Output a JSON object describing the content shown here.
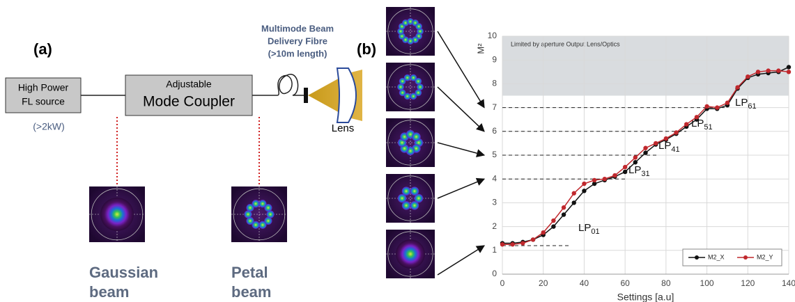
{
  "diagram": {
    "panel_a": "(a)",
    "panel_b": "(b)",
    "source": [
      "High Power",
      "FL source"
    ],
    "source_power": "(>2kW)",
    "coupler": [
      "Adjustable",
      "Mode Coupler"
    ],
    "fibre": [
      "Multimode Beam",
      "Delivery Fibre",
      "(>10m length)"
    ],
    "lens": "Lens",
    "gaussian": [
      "Gaussian",
      "beam"
    ],
    "petal": [
      "Petal",
      "beam"
    ]
  },
  "chart_data": {
    "type": "line",
    "x_label": "Settings [a.u]",
    "y_label": "M²",
    "xlim": [
      0,
      140
    ],
    "xticks": [
      0,
      20,
      40,
      60,
      80,
      100,
      120,
      140
    ],
    "ylim": [
      0,
      10
    ],
    "yticks": [
      0,
      1,
      2,
      3,
      4,
      5,
      6,
      7,
      8,
      9,
      10
    ],
    "grid": true,
    "legend": "bottom-right",
    "shaded_region": {
      "label": "Limited by aperture Output Lens/Optics",
      "y": [
        7.5,
        10
      ],
      "color": "#d9dcdf"
    },
    "annotations": [
      {
        "text": "LP",
        "sub": "01",
        "y": 1.2
      },
      {
        "text": "LP",
        "sub": "31",
        "y": 4
      },
      {
        "text": "LP",
        "sub": "41",
        "y": 5
      },
      {
        "text": "LP",
        "sub": "51",
        "y": 6
      },
      {
        "text": "LP",
        "sub": "61",
        "y": 7
      }
    ],
    "x": [
      0,
      5,
      10,
      15,
      20,
      25,
      30,
      35,
      40,
      45,
      50,
      55,
      60,
      65,
      70,
      75,
      80,
      85,
      90,
      95,
      100,
      105,
      110,
      115,
      120,
      125,
      130,
      135,
      140
    ],
    "series": [
      {
        "name": "M2_X",
        "color": "#111111",
        "values": [
          1.3,
          1.3,
          1.35,
          1.45,
          1.65,
          2.0,
          2.5,
          3.0,
          3.5,
          3.8,
          3.95,
          4.1,
          4.3,
          4.7,
          5.1,
          5.45,
          5.65,
          5.9,
          6.2,
          6.5,
          6.95,
          6.95,
          7.1,
          7.8,
          8.25,
          8.4,
          8.45,
          8.5,
          8.7
        ]
      },
      {
        "name": "M2_Y",
        "color": "#c0282d",
        "values": [
          1.25,
          1.25,
          1.3,
          1.45,
          1.75,
          2.25,
          2.8,
          3.4,
          3.8,
          3.95,
          4.0,
          4.15,
          4.5,
          4.9,
          5.3,
          5.5,
          5.7,
          5.95,
          6.3,
          6.6,
          7.05,
          7.0,
          7.2,
          7.85,
          8.3,
          8.5,
          8.55,
          8.55,
          8.5
        ]
      }
    ]
  }
}
